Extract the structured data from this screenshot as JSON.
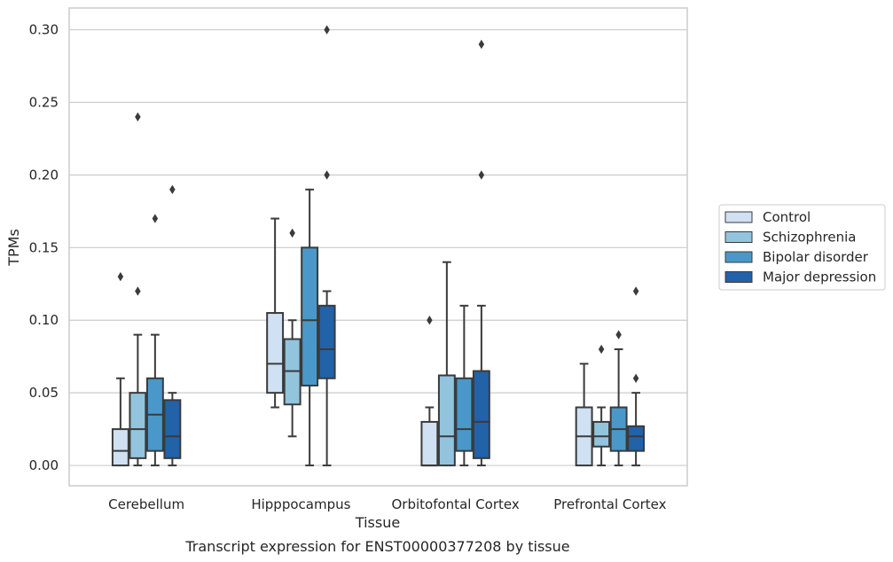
{
  "caption": "Transcript expression for ENST00000377208 by tissue",
  "chart_data": {
    "type": "box",
    "xlabel": "Tissue",
    "ylabel": "TPMs",
    "ylim": [
      -0.014,
      0.315
    ],
    "yticks": [
      "0.00",
      "0.05",
      "0.10",
      "0.15",
      "0.20",
      "0.25",
      "0.30"
    ],
    "ytick_values": [
      0,
      0.05,
      0.1,
      0.15,
      0.2,
      0.25,
      0.3
    ],
    "categories": [
      "Cerebellum",
      "Hipppocampus",
      "Orbitofontal Cortex",
      "Prefrontal Cortex"
    ],
    "grid": "horizontal",
    "legend_position": "right",
    "series": [
      {
        "name": "Control",
        "color": "#cfe1f2",
        "boxes": [
          {
            "whisker_low": 0.0,
            "q1": 0.0,
            "median": 0.01,
            "q3": 0.025,
            "whisker_high": 0.06,
            "outliers": [
              0.13
            ]
          },
          {
            "whisker_low": 0.04,
            "q1": 0.05,
            "median": 0.07,
            "q3": 0.105,
            "whisker_high": 0.17,
            "outliers": []
          },
          {
            "whisker_low": 0.0,
            "q1": 0.0,
            "median": 0.0,
            "q3": 0.03,
            "whisker_high": 0.04,
            "outliers": [
              0.1
            ]
          },
          {
            "whisker_low": 0.0,
            "q1": 0.0,
            "median": 0.02,
            "q3": 0.04,
            "whisker_high": 0.07,
            "outliers": []
          }
        ]
      },
      {
        "name": "Schizophrenia",
        "color": "#93c4de",
        "boxes": [
          {
            "whisker_low": 0.0,
            "q1": 0.005,
            "median": 0.025,
            "q3": 0.05,
            "whisker_high": 0.09,
            "outliers": [
              0.12,
              0.24
            ]
          },
          {
            "whisker_low": 0.02,
            "q1": 0.042,
            "median": 0.065,
            "q3": 0.087,
            "whisker_high": 0.1,
            "outliers": [
              0.16
            ]
          },
          {
            "whisker_low": 0.0,
            "q1": 0.0,
            "median": 0.02,
            "q3": 0.062,
            "whisker_high": 0.14,
            "outliers": []
          },
          {
            "whisker_low": 0.0,
            "q1": 0.013,
            "median": 0.02,
            "q3": 0.03,
            "whisker_high": 0.04,
            "outliers": [
              0.08
            ]
          }
        ]
      },
      {
        "name": "Bipolar disorder",
        "color": "#4a98c9",
        "boxes": [
          {
            "whisker_low": 0.0,
            "q1": 0.01,
            "median": 0.035,
            "q3": 0.06,
            "whisker_high": 0.09,
            "outliers": [
              0.17
            ]
          },
          {
            "whisker_low": 0.0,
            "q1": 0.055,
            "median": 0.1,
            "q3": 0.15,
            "whisker_high": 0.19,
            "outliers": []
          },
          {
            "whisker_low": 0.0,
            "q1": 0.01,
            "median": 0.025,
            "q3": 0.06,
            "whisker_high": 0.11,
            "outliers": []
          },
          {
            "whisker_low": 0.0,
            "q1": 0.01,
            "median": 0.025,
            "q3": 0.04,
            "whisker_high": 0.08,
            "outliers": [
              0.09
            ]
          }
        ]
      },
      {
        "name": "Major depression",
        "color": "#2162a8",
        "boxes": [
          {
            "whisker_low": 0.0,
            "q1": 0.005,
            "median": 0.02,
            "q3": 0.045,
            "whisker_high": 0.05,
            "outliers": [
              0.19
            ]
          },
          {
            "whisker_low": 0.0,
            "q1": 0.06,
            "median": 0.08,
            "q3": 0.11,
            "whisker_high": 0.12,
            "outliers": [
              0.2,
              0.3
            ]
          },
          {
            "whisker_low": 0.0,
            "q1": 0.005,
            "median": 0.03,
            "q3": 0.065,
            "whisker_high": 0.11,
            "outliers": [
              0.2,
              0.29
            ]
          },
          {
            "whisker_low": 0.0,
            "q1": 0.01,
            "median": 0.02,
            "q3": 0.027,
            "whisker_high": 0.05,
            "outliers": [
              0.06,
              0.12
            ]
          }
        ]
      }
    ]
  }
}
